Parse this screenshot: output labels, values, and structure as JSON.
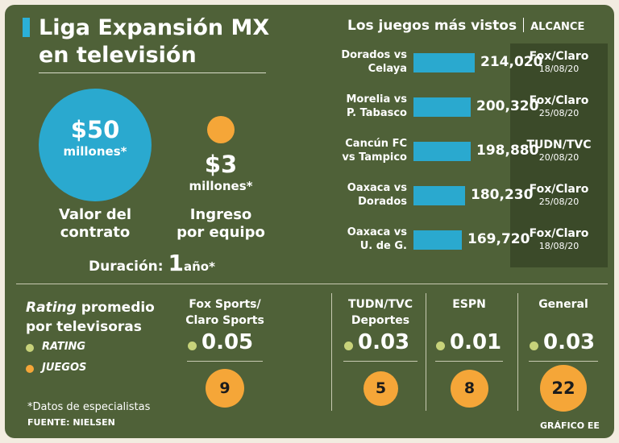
{
  "title": [
    "Liga Expansión MX",
    "en televisión"
  ],
  "contract": {
    "amount": "$50",
    "unit": "millones*",
    "label": [
      "Valor del",
      "contrato"
    ]
  },
  "team_income": {
    "amount": "$3",
    "unit": "millones*",
    "label": [
      "Ingreso",
      "por equipo"
    ]
  },
  "duration": {
    "label": "Duración:",
    "value": "1",
    "unit": "año*"
  },
  "colors": {
    "background": "#4f6138",
    "cyan": "#2aa9cf",
    "orange": "#f5a638",
    "rating_dot": "#c7d27a",
    "panel": "#3b4a29"
  },
  "chart_data": [
    {
      "type": "bar",
      "title": "Los juegos más vistos",
      "subtitle": "ALCANCE",
      "categories": [
        "Dorados vs Celaya",
        "Morelia vs P. Tabasco",
        "Cancún FC vs Tampico",
        "Oaxaca vs Dorados",
        "Oaxaca vs U. de G."
      ],
      "category_lines": [
        [
          "Dorados vs",
          "Celaya"
        ],
        [
          "Morelia vs",
          "P. Tabasco"
        ],
        [
          "Cancún FC",
          "vs Tampico"
        ],
        [
          "Oaxaca vs",
          "Dorados"
        ],
        [
          "Oaxaca vs",
          "U. de G."
        ]
      ],
      "values": [
        214020,
        200320,
        198880,
        180230,
        169720
      ],
      "value_labels": [
        "214,020",
        "200,320",
        "198,880",
        "180,230",
        "169,720"
      ],
      "networks": [
        "Fox/Claro",
        "Fox/Claro",
        "TUDN/TVC",
        "Fox/Claro",
        "Fox/Claro"
      ],
      "dates": [
        "18/08/20",
        "25/08/20",
        "20/08/20",
        "25/08/20",
        "18/08/20"
      ]
    },
    {
      "type": "table",
      "title": "Rating promedio por televisoras",
      "title_emphasis": "Rating",
      "title_rest": " promedio",
      "title_line2": "por televisoras",
      "legend": [
        {
          "label": "RATING",
          "color": "#c7d27a"
        },
        {
          "label": "JUEGOS",
          "color": "#f5a638"
        }
      ],
      "columns": [
        {
          "name": "Fox Sports/Claro Sports",
          "lines": [
            "Fox Sports/",
            "Claro Sports"
          ],
          "rating": 0.05,
          "rating_label": "0.05",
          "games": 9
        },
        {
          "name": "TUDN/TVC Deportes",
          "lines": [
            "TUDN/TVC",
            "Deportes"
          ],
          "rating": 0.03,
          "rating_label": "0.03",
          "games": 5
        },
        {
          "name": "ESPN",
          "lines": [
            "ESPN"
          ],
          "rating": 0.01,
          "rating_label": "0.01",
          "games": 8
        },
        {
          "name": "General",
          "lines": [
            "General"
          ],
          "rating": 0.03,
          "rating_label": "0.03",
          "games": 22
        }
      ]
    }
  ],
  "footnote": "*Datos de especialistas",
  "source": "FUENTE: NIELSEN",
  "credit": "GRÁFICO EE"
}
